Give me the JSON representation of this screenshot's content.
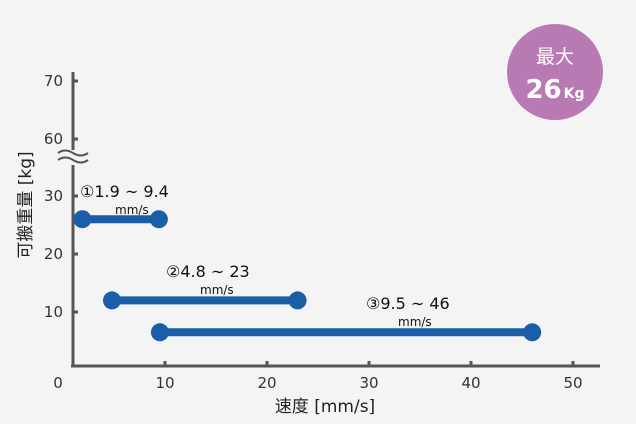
{
  "chart_data": {
    "type": "range",
    "xlabel": "速度 [mm/s]",
    "ylabel": "可搬重量 [kg]",
    "xlim": [
      0,
      50
    ],
    "ylim": [
      0,
      70
    ],
    "x_ticks": [
      "0",
      "10",
      "20",
      "30",
      "40",
      "50"
    ],
    "y_ticks": [
      "10",
      "20",
      "30",
      "60",
      "70"
    ],
    "axis_break": "between 30 and 60",
    "bar_color": "#1a5ea8",
    "ranges": [
      {
        "label": "①1.9 ~ 9.4",
        "unit": "mm/s",
        "x_start": 1.9,
        "x_end": 9.4,
        "y": 26
      },
      {
        "label": "②4.8 ~ 23",
        "unit": "mm/s",
        "x_start": 4.8,
        "x_end": 23,
        "y": 12
      },
      {
        "label": "③9.5 ~ 46",
        "unit": "mm/s",
        "x_start": 9.5,
        "x_end": 46,
        "y": 6.5
      }
    ],
    "badge": {
      "line1": "最大",
      "value": "26",
      "unit": "Kg",
      "color": "#b97ab4"
    }
  }
}
